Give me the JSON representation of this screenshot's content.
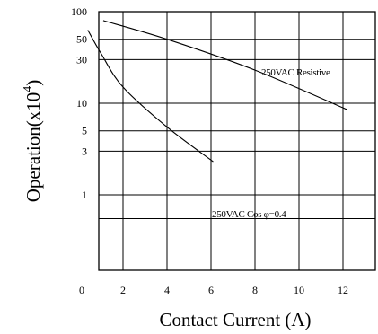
{
  "chart_data": {
    "type": "line",
    "title": "",
    "xlabel": "Contact Current (A)",
    "ylabel": "Operation(x10",
    "ylabel_sup": "4",
    "ylabel_close": ")",
    "xlim": [
      0,
      13
    ],
    "ylim": [
      0.5,
      100
    ],
    "yscale": "log",
    "grid": true,
    "x_ticks": [
      {
        "value": 0,
        "label": "0"
      },
      {
        "value": 2,
        "label": "2"
      },
      {
        "value": 4,
        "label": "4"
      },
      {
        "value": 6,
        "label": "6"
      },
      {
        "value": 8,
        "label": "8"
      },
      {
        "value": 10,
        "label": "10"
      },
      {
        "value": 12,
        "label": "12"
      }
    ],
    "y_ticks": [
      {
        "value": 100,
        "label": "100"
      },
      {
        "value": 50,
        "label": "50"
      },
      {
        "value": 30,
        "label": "30"
      },
      {
        "value": 10,
        "label": "10"
      },
      {
        "value": 5,
        "label": "5"
      },
      {
        "value": 3,
        "label": "3"
      },
      {
        "value": 1,
        "label": "1"
      }
    ],
    "series": [
      {
        "label": "250VAC Resistive",
        "points": [
          [
            1.1,
            80
          ],
          [
            4,
            50
          ],
          [
            8,
            23
          ],
          [
            12.2,
            8.5
          ]
        ]
      },
      {
        "label": "250VAC Cos φ=0.4",
        "points": [
          [
            0.4,
            63
          ],
          [
            1,
            35
          ],
          [
            2,
            15
          ],
          [
            4,
            5.5
          ],
          [
            6.1,
            2.3
          ]
        ]
      }
    ]
  }
}
